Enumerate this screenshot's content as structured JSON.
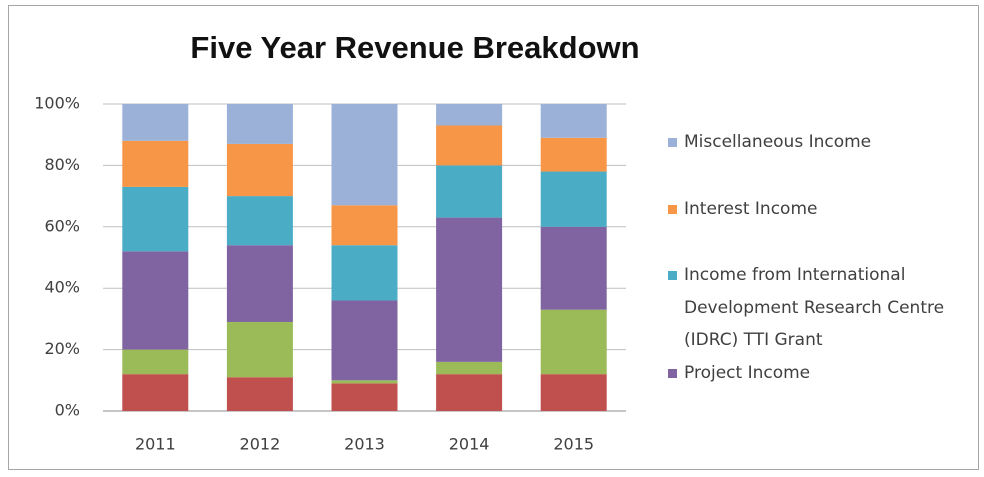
{
  "chart_data": {
    "type": "stacked_bar",
    "title": "Five Year Revenue Breakdown",
    "categories": [
      "2011",
      "2012",
      "2013",
      "2014",
      "2015"
    ],
    "series": [
      {
        "color": "#c0504d",
        "values": [
          12,
          11,
          9,
          12,
          12
        ]
      },
      {
        "color": "#9bbb59",
        "values": [
          8,
          18,
          1,
          4,
          21
        ]
      },
      {
        "name": "Project Income",
        "color": "#8064a2",
        "values": [
          32,
          25,
          26,
          47,
          27
        ]
      },
      {
        "name": "Income from International Development Research Centre (IDRC) TTI Grant",
        "color": "#4bacc6",
        "values": [
          21,
          16,
          18,
          17,
          18
        ]
      },
      {
        "name": "Interest Income",
        "color": "#f79646",
        "values": [
          15,
          17,
          13,
          13,
          11
        ]
      },
      {
        "name": "Miscellaneous Income",
        "color": "#9bb1d8",
        "values": [
          12,
          13,
          33,
          7,
          11
        ]
      }
    ],
    "ylim": [
      0,
      100
    ],
    "yticks": [
      {
        "value": 0,
        "label": "0%"
      },
      {
        "value": 20,
        "label": "20%"
      },
      {
        "value": 40,
        "label": "40%"
      },
      {
        "value": 60,
        "label": "60%"
      },
      {
        "value": 80,
        "label": "80%"
      },
      {
        "value": 100,
        "label": "100%"
      }
    ],
    "grid": true,
    "legend": "right"
  }
}
